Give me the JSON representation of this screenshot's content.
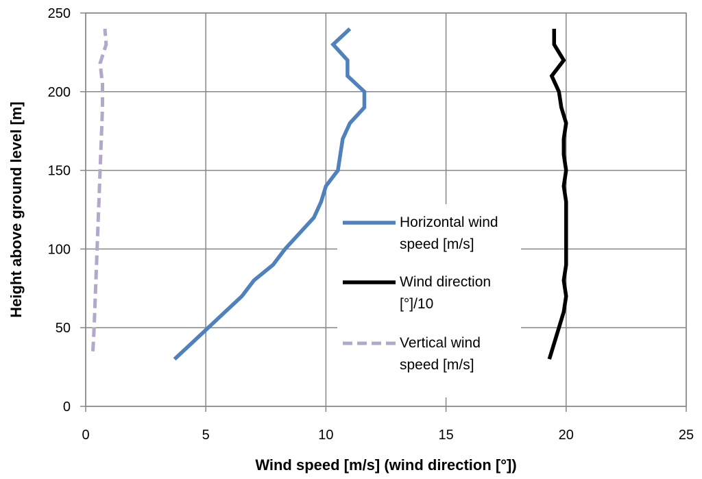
{
  "chart_data": {
    "type": "line",
    "xlabel": "Wind speed [m/s] (wind direction [°])",
    "ylabel": "Height above ground level [m]",
    "xlim": [
      0,
      25
    ],
    "ylim": [
      0,
      250
    ],
    "xticks": [
      "0",
      "5",
      "10",
      "15",
      "20",
      "25"
    ],
    "yticks": [
      "0",
      "50",
      "100",
      "150",
      "200",
      "250"
    ],
    "grid": true,
    "legend_position": "center-right",
    "series": [
      {
        "name_lines": [
          "Horizontal wind",
          "speed [m/s]"
        ],
        "color": "#4f81bd",
        "dashed": false,
        "points": [
          [
            3.7,
            30
          ],
          [
            4.4,
            40
          ],
          [
            5.1,
            50
          ],
          [
            5.8,
            60
          ],
          [
            6.5,
            70
          ],
          [
            7.0,
            80
          ],
          [
            7.8,
            90
          ],
          [
            8.3,
            100
          ],
          [
            8.9,
            110
          ],
          [
            9.5,
            120
          ],
          [
            9.8,
            130
          ],
          [
            10.0,
            140
          ],
          [
            10.5,
            150
          ],
          [
            10.6,
            160
          ],
          [
            10.7,
            170
          ],
          [
            11.0,
            180
          ],
          [
            11.6,
            190
          ],
          [
            11.6,
            200
          ],
          [
            10.9,
            210
          ],
          [
            10.9,
            220
          ],
          [
            10.3,
            230
          ],
          [
            11.0,
            240
          ]
        ]
      },
      {
        "name_lines": [
          "Wind direction",
          "[°]/10"
        ],
        "color": "#000000",
        "dashed": false,
        "points": [
          [
            19.3,
            30
          ],
          [
            19.5,
            40
          ],
          [
            19.7,
            50
          ],
          [
            19.9,
            60
          ],
          [
            20.0,
            70
          ],
          [
            19.9,
            80
          ],
          [
            20.0,
            90
          ],
          [
            20.0,
            100
          ],
          [
            20.0,
            110
          ],
          [
            20.0,
            120
          ],
          [
            20.0,
            130
          ],
          [
            19.9,
            140
          ],
          [
            20.0,
            150
          ],
          [
            19.9,
            160
          ],
          [
            19.9,
            170
          ],
          [
            20.0,
            180
          ],
          [
            19.8,
            190
          ],
          [
            19.7,
            200
          ],
          [
            19.4,
            210
          ],
          [
            19.9,
            220
          ],
          [
            19.5,
            230
          ],
          [
            19.5,
            240
          ]
        ]
      },
      {
        "name_lines": [
          "Vertical wind",
          "speed [m/s]"
        ],
        "color": "#b3a8c9",
        "dashed": true,
        "points": [
          [
            0.3,
            35
          ],
          [
            0.35,
            50
          ],
          [
            0.4,
            70
          ],
          [
            0.45,
            90
          ],
          [
            0.5,
            110
          ],
          [
            0.55,
            130
          ],
          [
            0.6,
            150
          ],
          [
            0.65,
            170
          ],
          [
            0.7,
            190
          ],
          [
            0.7,
            205
          ],
          [
            0.6,
            218
          ],
          [
            0.85,
            230
          ],
          [
            0.8,
            240
          ]
        ]
      }
    ]
  }
}
